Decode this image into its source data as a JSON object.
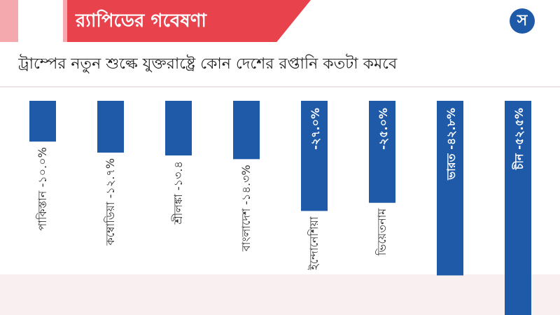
{
  "header": {
    "banner_title": "র‍্যাপিডের গবেষণা",
    "logo_glyph": "স"
  },
  "colors": {
    "bar": "#1e5aa8",
    "banner": "#e8434d",
    "banner_light": "#f4a9ae",
    "bottom_band": "#f9eef0"
  },
  "chart_data": {
    "type": "bar",
    "title": "ট্রাম্পের নতুন শুল্কে যুক্তরাষ্ট্রে কোন দেশের রপ্তানি কতটা কমবে",
    "orientation": "vertical-downward",
    "categories": [
      "পাকিস্তান",
      "কম্বোডিয়া",
      "শ্রীলঙ্কা",
      "বাংলাদেশ",
      "ইন্দোনেশিয়া",
      "ভিয়েতনাম",
      "ভারত",
      "চীন"
    ],
    "values": [
      -10.0,
      -12.7,
      -13.4,
      -14.3,
      -27.0,
      -25.0,
      -42.8,
      -52.5
    ],
    "labels": [
      "পাকিস্তান -১০.০%",
      "কম্বোডিয়া -১২.৭%",
      "শ্রীলঙ্কা -১৩.৪",
      "বাংলাদেশ -১৪.৩%",
      "-২৭.০%",
      "-২৫.০%",
      "ভারত -৪২.৮%",
      "চীন -৫২.৫%"
    ],
    "ylim": [
      -52.5,
      0
    ]
  }
}
